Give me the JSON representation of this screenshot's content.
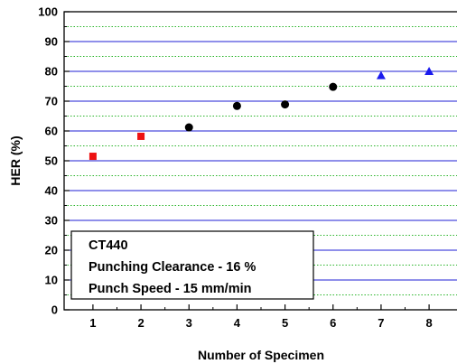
{
  "chart_data": {
    "type": "scatter",
    "xlabel": "Number of Specimen",
    "ylabel": "HER (%)",
    "xlim": [
      0.4,
      8.6
    ],
    "ylim": [
      0,
      100
    ],
    "x_ticks": [
      1,
      2,
      3,
      4,
      5,
      6,
      7,
      8
    ],
    "y_ticks": [
      0,
      10,
      20,
      30,
      40,
      50,
      60,
      70,
      80,
      90,
      100
    ],
    "grid": {
      "major_y": true,
      "major_color": "#1f1fd6",
      "minor_y": true,
      "minor_color": "#2bb52b"
    },
    "series": [
      {
        "marker": "square",
        "color": "#ee1111",
        "x": [
          1,
          2
        ],
        "y": [
          51.5,
          58.2
        ]
      },
      {
        "marker": "circle",
        "color": "#000000",
        "x": [
          3,
          4,
          5,
          6
        ],
        "y": [
          61.2,
          68.4,
          68.9,
          74.8
        ]
      },
      {
        "marker": "triangle",
        "color": "#1a1aee",
        "x": [
          7,
          8
        ],
        "y": [
          78.6,
          80.0
        ]
      }
    ],
    "annotation": {
      "position": "lower-left",
      "lines": [
        "CT440",
        "Punching Clearance - 16 %",
        "Punch Speed - 15 mm/min"
      ]
    }
  }
}
